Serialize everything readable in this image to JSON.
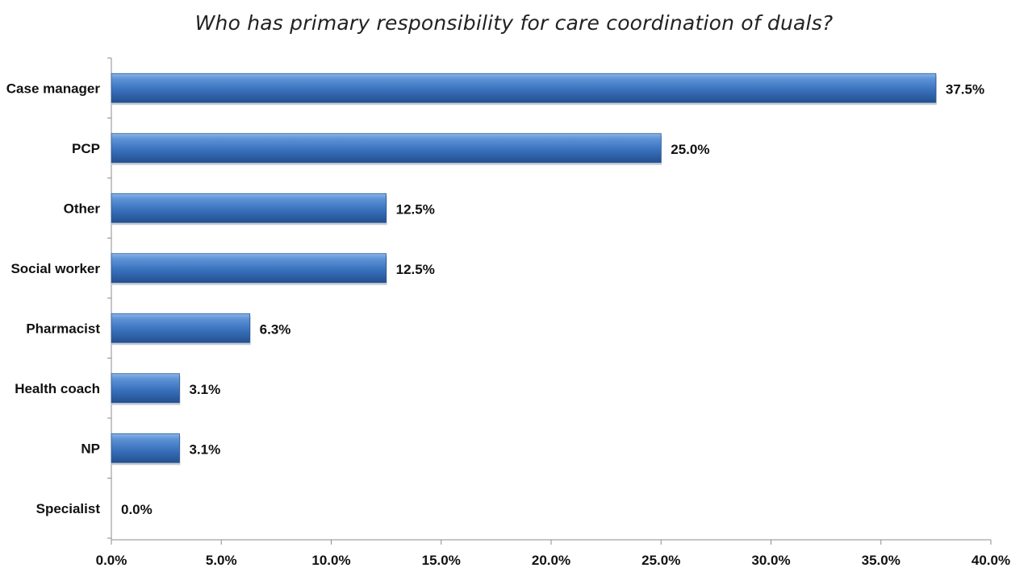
{
  "chart_data": {
    "type": "bar",
    "orientation": "horizontal",
    "title": "Who has primary responsibility for care coordination of duals?",
    "xlabel": "",
    "ylabel": "",
    "categories": [
      "Case manager",
      "PCP",
      "Other",
      "Social worker",
      "Pharmacist",
      "Health coach",
      "NP",
      "Specialist"
    ],
    "values": [
      37.5,
      25.0,
      12.5,
      12.5,
      6.3,
      3.1,
      3.1,
      0.0
    ],
    "value_labels": [
      "37.5%",
      "25.0%",
      "12.5%",
      "12.5%",
      "6.3%",
      "3.1%",
      "3.1%",
      "0.0%"
    ],
    "xlim": [
      0,
      40
    ],
    "xticks": [
      0,
      5,
      10,
      15,
      20,
      25,
      30,
      35,
      40
    ],
    "xtick_labels": [
      "0.0%",
      "5.0%",
      "10.0%",
      "15.0%",
      "20.0%",
      "25.0%",
      "30.0%",
      "35.0%",
      "40.0%"
    ],
    "grid": false,
    "legend": "none",
    "bar_color": "#3a72be"
  }
}
